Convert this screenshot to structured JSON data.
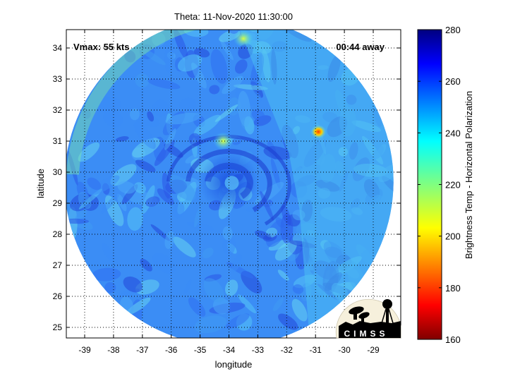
{
  "map": {
    "title": "Theta: 11-Nov-2020 11:30:00",
    "xlabel": "longitude",
    "ylabel": "latitude",
    "vmax_label": "Vmax: 55 kts",
    "time_away_label": "00:44 away",
    "x_ticks": [
      "-39",
      "-38",
      "-37",
      "-36",
      "-35",
      "-34",
      "-33",
      "-32",
      "-31",
      "-30",
      "-29"
    ],
    "y_ticks": [
      "25",
      "26",
      "27",
      "28",
      "29",
      "30",
      "31",
      "32",
      "33",
      "34"
    ],
    "grid": true,
    "storm_center": {
      "lon": -34.0,
      "lat": 29.7
    },
    "swath_radius_deg": 5.3,
    "warm_spots": [
      {
        "lon": -30.9,
        "lat": 31.3,
        "tb": 185
      },
      {
        "lon": -34.2,
        "lat": 31.0,
        "tb": 228
      },
      {
        "lon": -33.5,
        "lat": 34.3,
        "tb": 232
      }
    ]
  },
  "colorbar": {
    "label": "Brightness Temp - Horizontal Polarization",
    "ticks": [
      "160",
      "180",
      "200",
      "220",
      "240",
      "260",
      "280"
    ],
    "min": 160,
    "max": 280,
    "colormap": "jet"
  },
  "logo": {
    "text": "CIMSS"
  }
}
